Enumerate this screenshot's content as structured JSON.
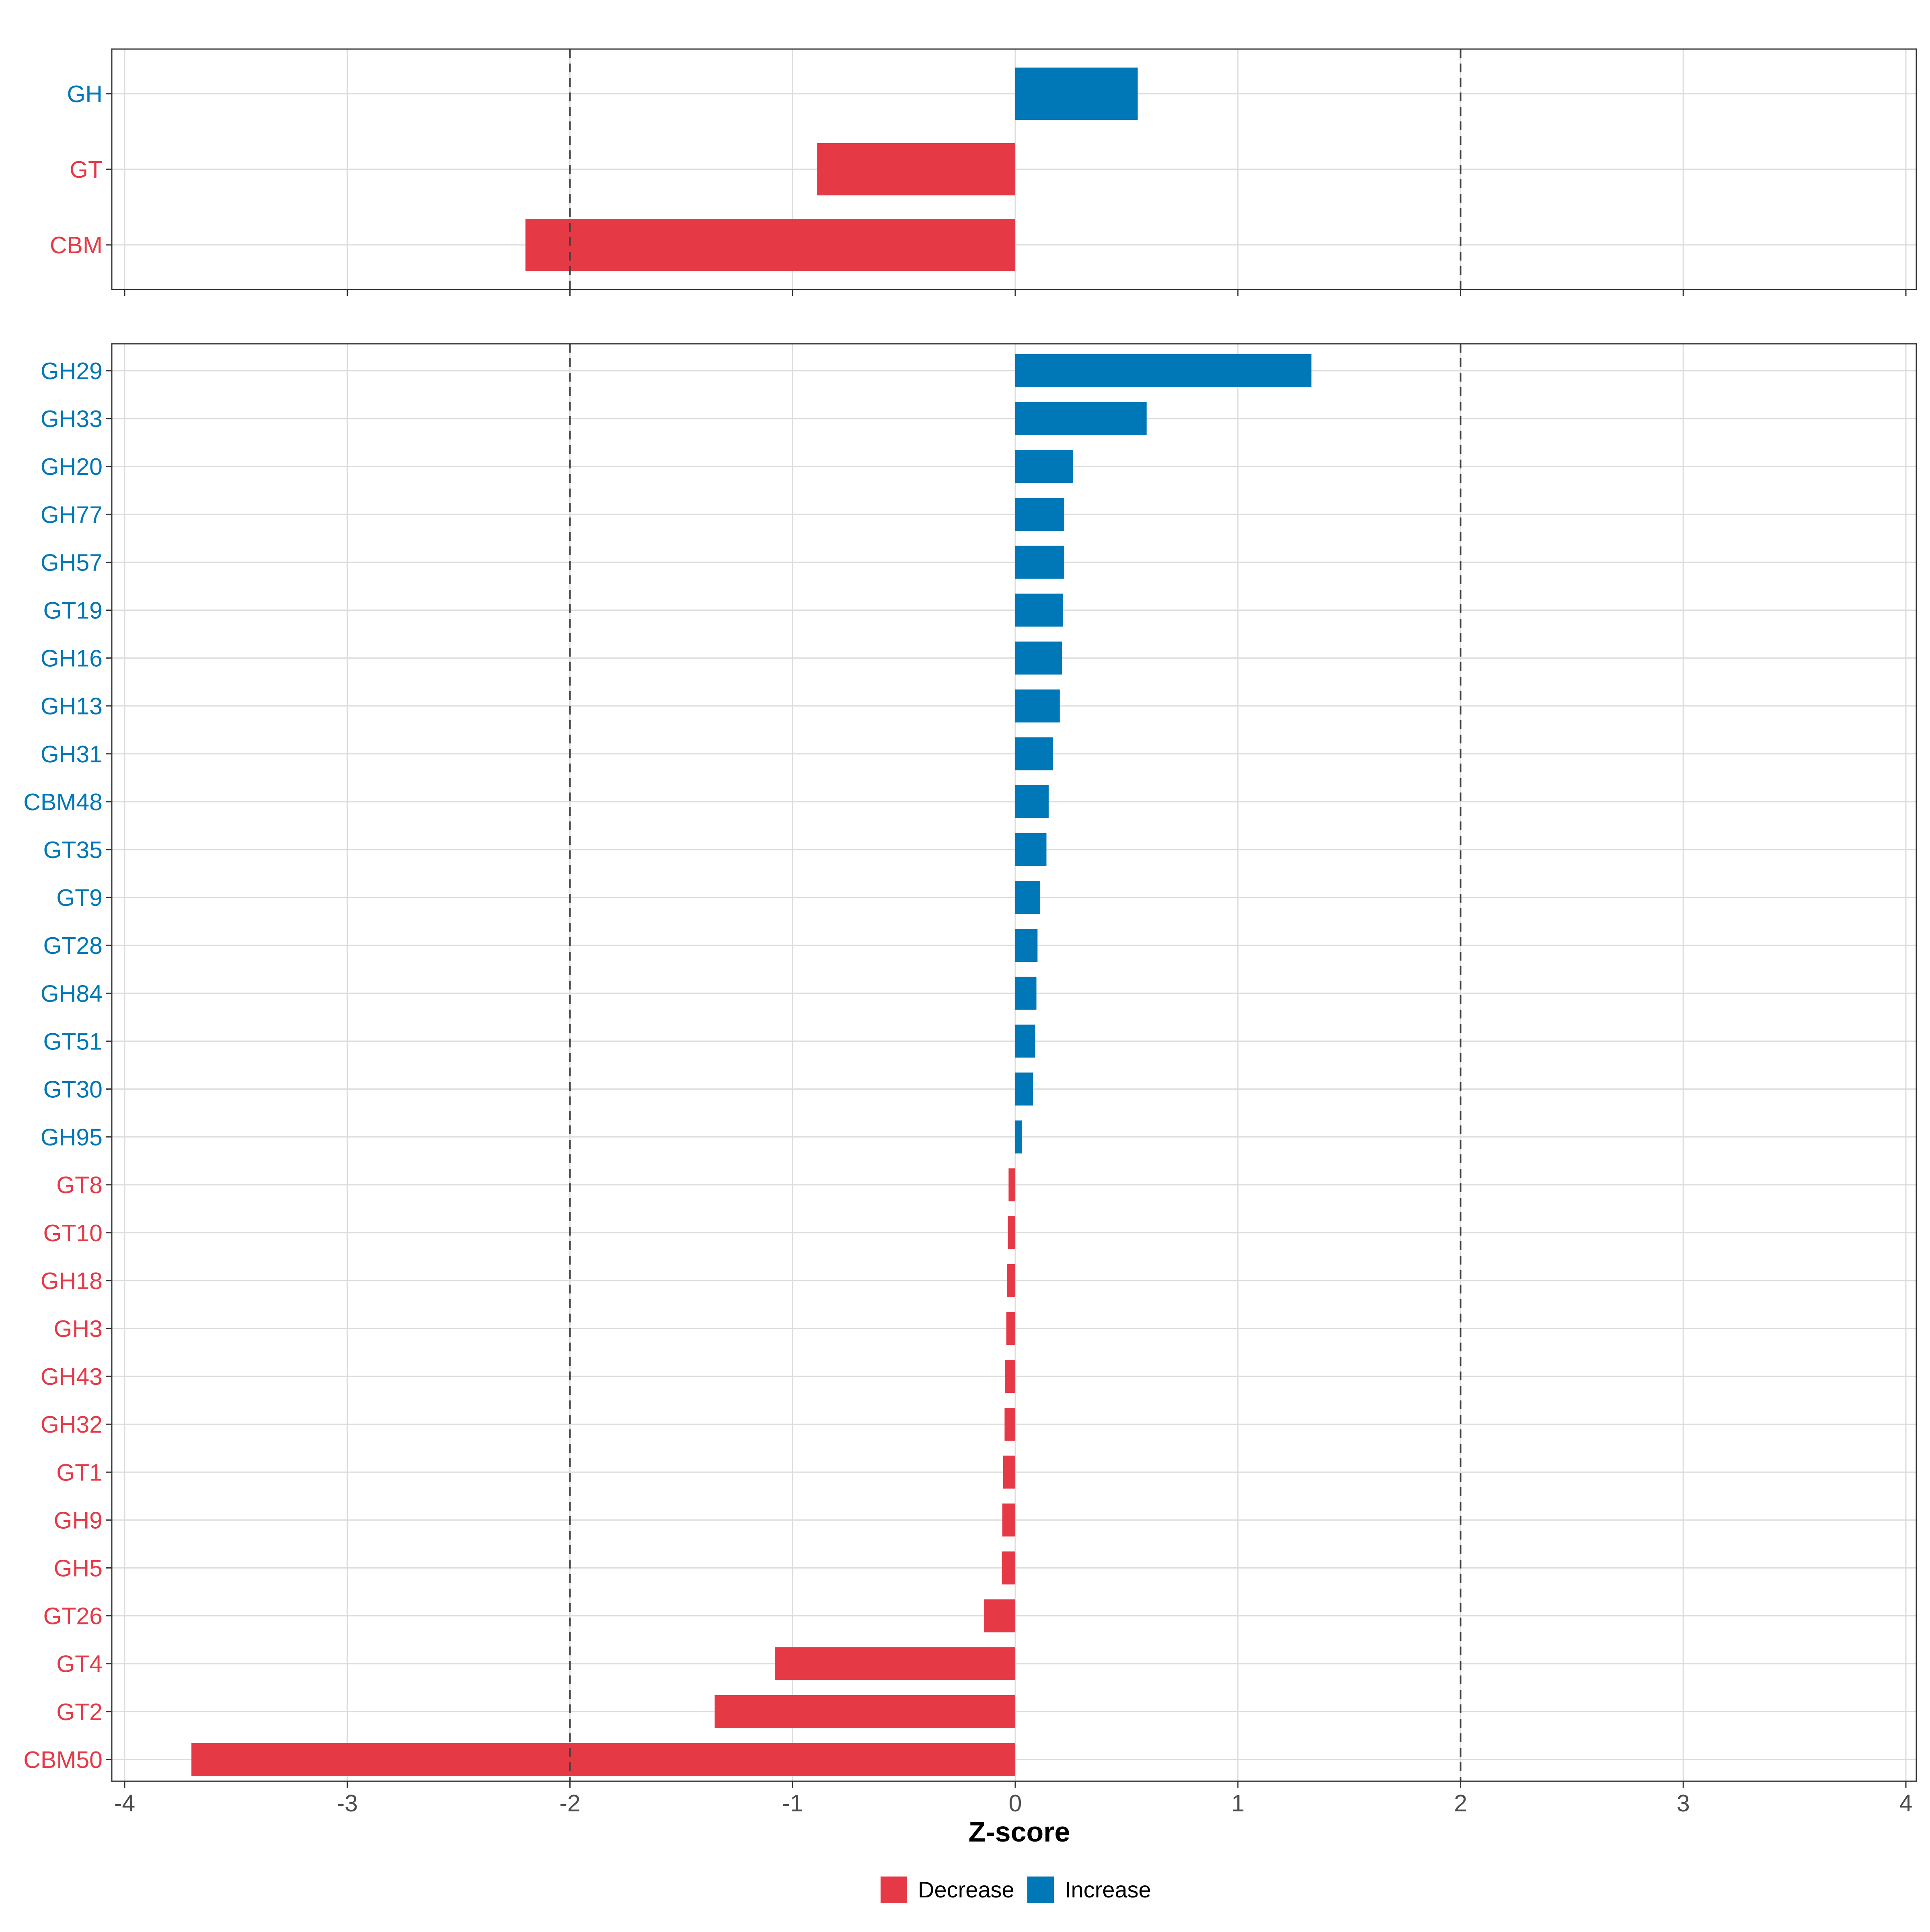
{
  "chart_data": [
    {
      "type": "bar",
      "orientation": "horizontal",
      "panel": "top",
      "categories": [
        "GH",
        "GT",
        "CBM"
      ],
      "values": [
        0.55,
        -0.89,
        -2.2
      ],
      "xlim": [
        -4,
        4
      ],
      "reference_lines": [
        -2,
        2
      ],
      "grid": true
    },
    {
      "type": "bar",
      "orientation": "horizontal",
      "panel": "bottom",
      "categories": [
        "GH29",
        "GH33",
        "GH20",
        "GH77",
        "GH57",
        "GT19",
        "GH16",
        "GH13",
        "GH31",
        "CBM48",
        "GT35",
        "GT9",
        "GT28",
        "GH84",
        "GT51",
        "GT30",
        "GH95",
        "GT8",
        "GT10",
        "GH18",
        "GH3",
        "GH43",
        "GH32",
        "GT1",
        "GH9",
        "GH5",
        "GT26",
        "GT4",
        "GT2",
        "CBM50"
      ],
      "values": [
        1.33,
        0.59,
        0.26,
        0.22,
        0.22,
        0.215,
        0.21,
        0.2,
        0.17,
        0.15,
        0.14,
        0.11,
        0.1,
        0.095,
        0.09,
        0.08,
        0.03,
        -0.03,
        -0.033,
        -0.036,
        -0.04,
        -0.045,
        -0.048,
        -0.055,
        -0.058,
        -0.06,
        -0.14,
        -1.08,
        -1.35,
        -3.7
      ],
      "xlim": [
        -4,
        4
      ],
      "reference_lines": [
        -2,
        2
      ],
      "grid": true
    }
  ],
  "x_ticks": [
    "-4",
    "-3",
    "-2",
    "-1",
    "0",
    "1",
    "2",
    "3",
    "4"
  ],
  "xlabel": "Z-score",
  "legend": {
    "position": "bottom",
    "items": [
      {
        "label": "Decrease",
        "color": "#E63946"
      },
      {
        "label": "Increase",
        "color": "#0077B6"
      }
    ]
  },
  "colors": {
    "decrease": "#E63946",
    "increase": "#0077B6",
    "grid": "#DCDCDC",
    "panel_border": "#333333",
    "reference_line": "#404040"
  }
}
